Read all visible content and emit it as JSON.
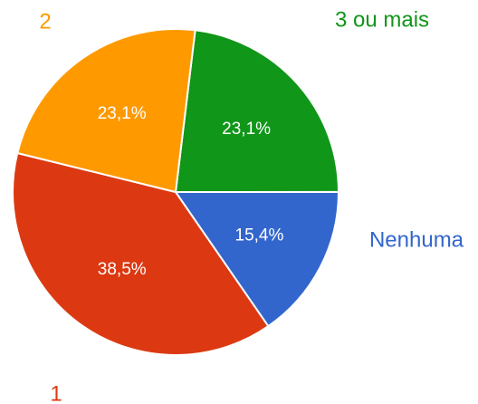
{
  "chart_data": {
    "type": "pie",
    "categories": [
      "3 ou mais",
      "Nenhuma",
      "1",
      "2"
    ],
    "values": [
      23.1,
      15.4,
      38.5,
      23.1
    ],
    "value_labels": [
      "23,1%",
      "15,4%",
      "38,5%",
      "23,1%"
    ],
    "colors": [
      "#109618",
      "#3366cc",
      "#dc3912",
      "#ff9900"
    ]
  }
}
